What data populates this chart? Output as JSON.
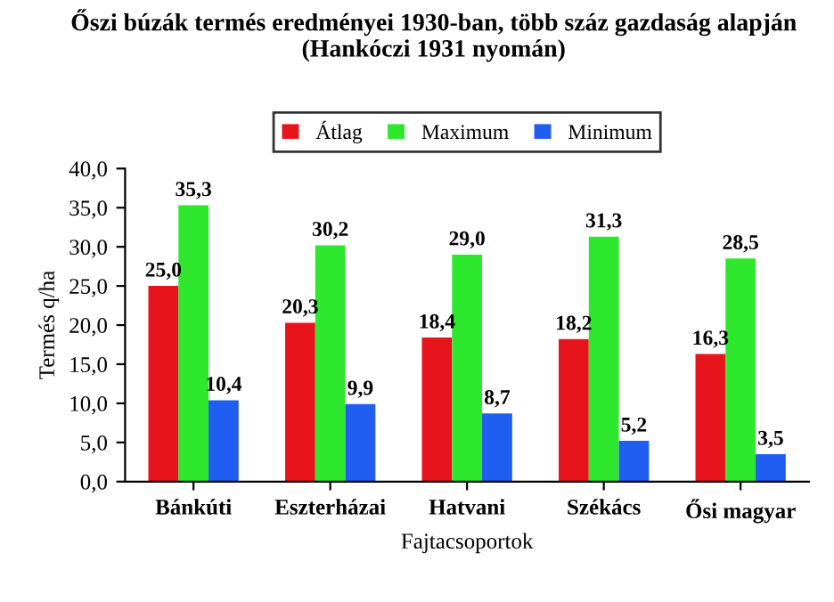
{
  "chart_data": {
    "type": "bar",
    "title": "Őszi búzák termés eredményei 1930-ban, több száz gazdaság alapján (Hankóczi 1931 nyomán)",
    "xlabel": "Fajtacsoportok",
    "ylabel": "Termés q/ha",
    "categories": [
      "Bánkúti",
      "Eszterházai",
      "Hatvani",
      "Székács",
      "Ősi magyar"
    ],
    "series": [
      {
        "name": "Átlag",
        "color": "#e8141b",
        "values": [
          25.0,
          20.3,
          18.4,
          18.2,
          16.3
        ],
        "value_labels": [
          "25,0",
          "20,3",
          "18,4",
          "18,2",
          "16,3"
        ]
      },
      {
        "name": "Maximum",
        "color": "#2ee82e",
        "values": [
          35.3,
          30.2,
          29.0,
          31.3,
          28.5
        ],
        "value_labels": [
          "35,3",
          "30,2",
          "29,0",
          "31,3",
          "28,5"
        ]
      },
      {
        "name": "Minimum",
        "color": "#1f5ef0",
        "values": [
          10.4,
          9.9,
          8.7,
          5.2,
          3.5
        ],
        "value_labels": [
          "10,4",
          "9,9",
          "8,7",
          "5,2",
          "3,5"
        ]
      }
    ],
    "ylim": [
      0,
      40
    ],
    "yticks": [
      {
        "value": 0,
        "label": "0,0"
      },
      {
        "value": 5,
        "label": "5,0"
      },
      {
        "value": 10,
        "label": "10,0"
      },
      {
        "value": 15,
        "label": "15,0"
      },
      {
        "value": 20,
        "label": "20,0"
      },
      {
        "value": 25,
        "label": "25,0"
      },
      {
        "value": 30,
        "label": "30,0"
      },
      {
        "value": 35,
        "label": "35,0"
      },
      {
        "value": 40,
        "label": "40,0"
      }
    ],
    "legend": "top",
    "grid": false
  }
}
